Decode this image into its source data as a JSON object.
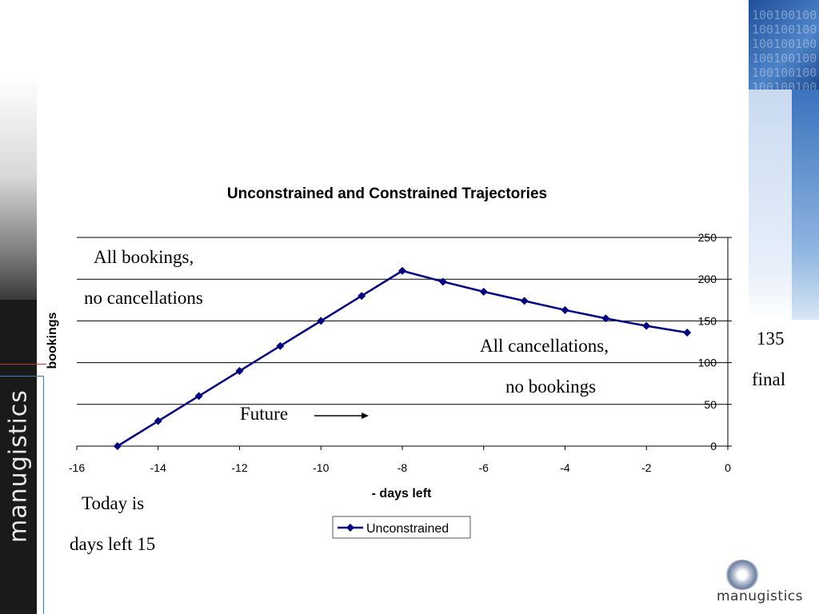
{
  "brand": {
    "vertical_name": "manugistics",
    "logo_text": "manugistics"
  },
  "annotations": {
    "all_bookings": "All bookings,",
    "no_cancellations": "no cancellations",
    "all_cancellations": "All cancellations,",
    "no_bookings": "no bookings",
    "future": "Future",
    "value_135": "135",
    "final": "final",
    "today_is": "Today is",
    "days_left_15": "days left 15"
  },
  "chart_data": {
    "type": "line",
    "title": "Unconstrained and Constrained Trajectories",
    "xlabel": "- days left",
    "ylabel": "bookings",
    "xlim": [
      -16,
      0
    ],
    "ylim": [
      0,
      250
    ],
    "x_ticks": [
      "-16",
      "-14",
      "-12",
      "-10",
      "-8",
      "-6",
      "-4",
      "-2",
      "0"
    ],
    "y_ticks": [
      "0",
      "50",
      "100",
      "150",
      "200",
      "250"
    ],
    "grid": "horizontal",
    "legend": "bottom",
    "series": [
      {
        "name": "Unconstrained",
        "color": "#000080",
        "x": [
          -15,
          -14,
          -13,
          -12,
          -11,
          -10,
          -9,
          -8,
          -7,
          -6,
          -5,
          -4,
          -3,
          -2,
          -1
        ],
        "y": [
          0,
          30,
          60,
          90,
          120,
          150,
          180,
          210,
          197,
          185,
          174,
          163,
          153,
          144,
          136
        ]
      }
    ]
  }
}
